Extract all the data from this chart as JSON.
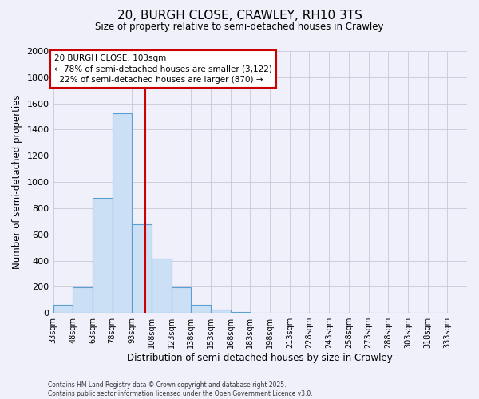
{
  "title_line1": "20, BURGH CLOSE, CRAWLEY, RH10 3TS",
  "title_line2": "Size of property relative to semi-detached houses in Crawley",
  "xlabel": "Distribution of semi-detached houses by size in Crawley",
  "ylabel": "Number of semi-detached properties",
  "bar_left_edges": [
    33,
    48,
    63,
    78,
    93,
    108,
    123,
    138,
    153,
    168,
    183,
    198,
    213,
    228,
    243,
    258,
    273,
    288,
    303,
    318
  ],
  "bar_heights": [
    65,
    195,
    880,
    1525,
    680,
    415,
    195,
    60,
    25,
    10,
    2,
    0,
    0,
    0,
    0,
    0,
    0,
    0,
    0,
    0
  ],
  "bin_width": 15,
  "bar_facecolor": "#cce0f5",
  "bar_edgecolor": "#5a9fd4",
  "property_value": 103,
  "vline_color": "#cc0000",
  "annotation_line1": "20 BURGH CLOSE: 103sqm",
  "annotation_line2": "← 78% of semi-detached houses are smaller (3,122)",
  "annotation_line3": "  22% of semi-detached houses are larger (870) →",
  "annotation_box_edgecolor": "#cc0000",
  "annotation_box_facecolor": "#ffffff",
  "ylim": [
    0,
    2000
  ],
  "yticks": [
    0,
    200,
    400,
    600,
    800,
    1000,
    1200,
    1400,
    1600,
    1800,
    2000
  ],
  "x_tick_labels": [
    "33sqm",
    "48sqm",
    "63sqm",
    "78sqm",
    "93sqm",
    "108sqm",
    "123sqm",
    "138sqm",
    "153sqm",
    "168sqm",
    "183sqm",
    "198sqm",
    "213sqm",
    "228sqm",
    "243sqm",
    "258sqm",
    "273sqm",
    "288sqm",
    "303sqm",
    "318sqm",
    "333sqm"
  ],
  "grid_color": "#c8c8d8",
  "bg_color": "#f0f0fa",
  "footer_line1": "Contains HM Land Registry data © Crown copyright and database right 2025.",
  "footer_line2": "Contains public sector information licensed under the Open Government Licence v3.0."
}
